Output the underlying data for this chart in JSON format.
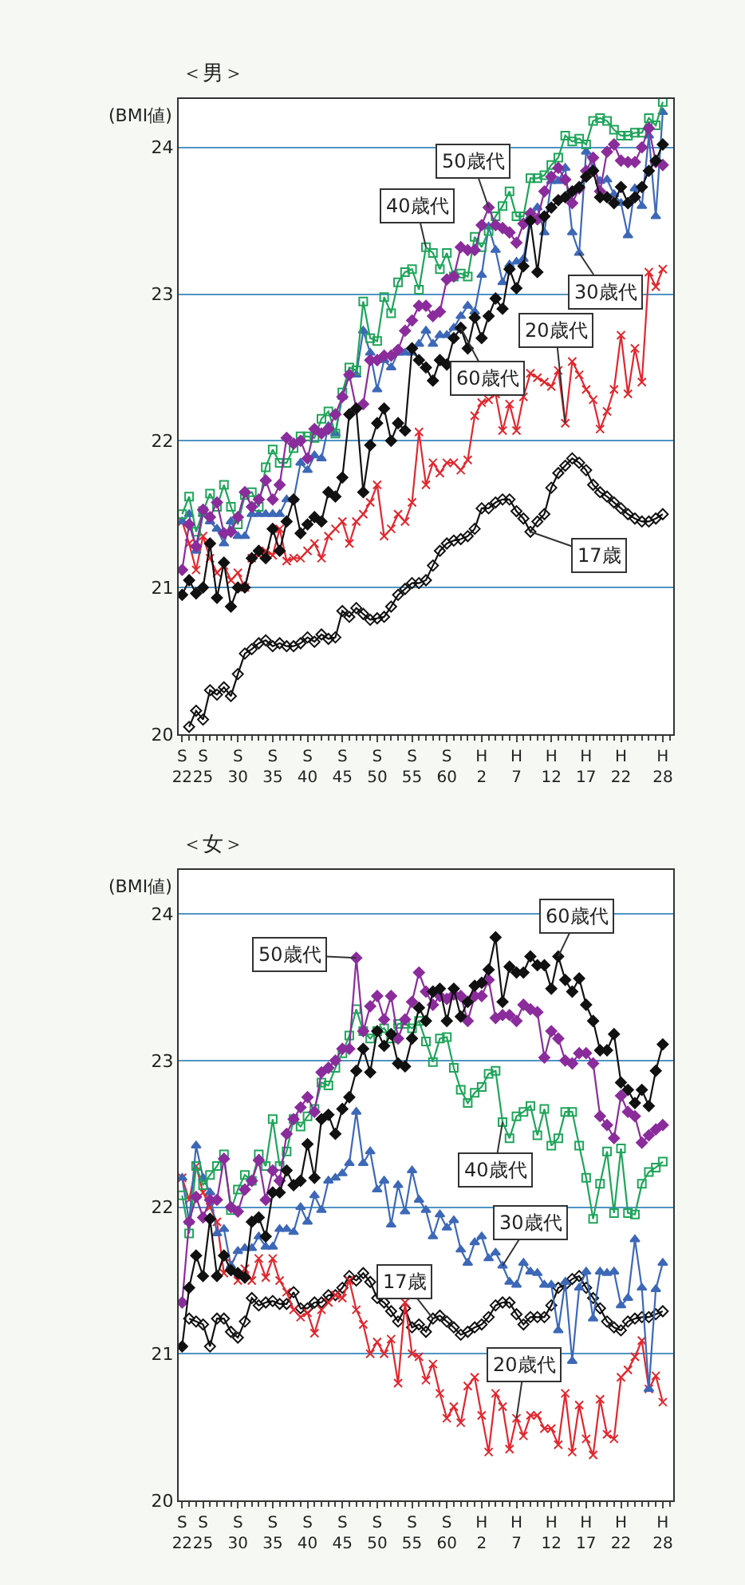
{
  "chart_data": [
    {
      "type": "line",
      "title": "＜男＞",
      "ylabel": "(BMI値)",
      "grid": "y",
      "line_style": "solid",
      "categories": [
        "S\n22",
        null,
        null,
        "S\n25",
        null,
        null,
        null,
        null,
        "S\n30",
        null,
        null,
        null,
        null,
        "S\n35",
        null,
        null,
        null,
        null,
        "S\n40",
        null,
        null,
        null,
        null,
        "S\n45",
        null,
        null,
        null,
        null,
        "S\n50",
        null,
        null,
        null,
        null,
        "S\n55",
        null,
        null,
        null,
        null,
        "S\n60",
        null,
        null,
        null,
        null,
        "H\n2",
        null,
        null,
        null,
        null,
        "H\n7",
        null,
        null,
        null,
        null,
        "H\n12",
        null,
        null,
        null,
        null,
        "H\n17",
        null,
        null,
        null,
        null,
        "H\n22",
        null,
        null,
        null,
        null,
        null,
        "H\n28"
      ],
      "ylim": [
        20,
        24.33
      ],
      "yticks": [
        20,
        21,
        22,
        23,
        24
      ],
      "series": [
        {
          "name": "17歳",
          "color": "#111111",
          "marker": "diamond",
          "values": [
            null,
            20.05,
            20.16,
            20.1,
            20.3,
            20.27,
            20.32,
            20.26,
            20.41,
            20.55,
            20.58,
            20.62,
            20.64,
            20.6,
            20.62,
            20.6,
            20.6,
            20.62,
            20.66,
            20.63,
            20.68,
            20.65,
            20.66,
            20.84,
            20.8,
            20.86,
            20.82,
            20.78,
            20.79,
            20.8,
            20.87,
            20.95,
            20.99,
            21.03,
            21.03,
            21.05,
            21.15,
            21.25,
            21.3,
            21.32,
            21.33,
            21.35,
            21.4,
            21.54,
            21.54,
            21.58,
            21.6,
            21.6,
            21.52,
            21.47,
            21.38,
            21.45,
            21.5,
            21.68,
            21.78,
            21.83,
            21.88,
            21.85,
            21.8,
            21.7,
            21.65,
            21.62,
            21.58,
            21.54,
            21.5,
            21.47,
            21.45,
            21.45,
            21.47,
            21.5
          ]
        },
        {
          "name": "20歳代",
          "color": "#e0282e",
          "marker": "cross",
          "values": [
            21.45,
            21.3,
            21.12,
            21.35,
            21.2,
            21.1,
            21.15,
            21.05,
            21.1,
            21.0,
            21.2,
            21.22,
            21.25,
            21.22,
            21.4,
            21.18,
            21.2,
            21.2,
            21.25,
            21.3,
            21.2,
            21.35,
            21.4,
            21.45,
            21.3,
            21.45,
            21.5,
            21.58,
            21.7,
            21.35,
            21.4,
            21.5,
            21.45,
            21.58,
            22.06,
            21.7,
            21.85,
            21.78,
            21.85,
            21.85,
            21.8,
            21.87,
            22.17,
            22.26,
            22.28,
            22.32,
            22.07,
            22.25,
            22.07,
            22.3,
            22.46,
            22.43,
            22.4,
            22.37,
            22.48,
            22.12,
            22.54,
            22.45,
            22.35,
            22.28,
            22.08,
            22.2,
            22.35,
            22.72,
            22.32,
            22.63,
            22.4,
            23.15,
            23.05,
            23.17
          ]
        },
        {
          "name": "30歳代",
          "color": "#3d68b8",
          "marker": "triangle",
          "values": [
            21.45,
            21.5,
            21.25,
            21.5,
            21.45,
            21.4,
            21.3,
            21.45,
            21.35,
            21.35,
            21.5,
            21.5,
            21.5,
            21.5,
            21.5,
            21.6,
            21.6,
            21.85,
            21.8,
            21.9,
            21.88,
            22.1,
            22.05,
            22.3,
            22.45,
            22.45,
            22.75,
            22.6,
            22.35,
            22.55,
            22.5,
            22.6,
            22.6,
            22.6,
            22.66,
            22.75,
            22.66,
            22.72,
            22.72,
            22.77,
            22.85,
            22.92,
            22.88,
            23.13,
            23.46,
            23.3,
            23.08,
            23.2,
            23.22,
            23.24,
            23.53,
            23.59,
            23.42,
            23.77,
            23.77,
            23.86,
            23.42,
            23.28,
            23.97,
            23.86,
            23.77,
            23.78,
            23.68,
            23.62,
            23.4,
            23.72,
            23.6,
            24.08,
            23.53,
            24.24
          ]
        },
        {
          "name": "40歳代",
          "color": "#1fa55a",
          "marker": "square",
          "values": [
            21.5,
            21.62,
            21.38,
            21.52,
            21.64,
            21.55,
            21.7,
            21.55,
            21.43,
            21.63,
            21.65,
            21.55,
            21.82,
            21.94,
            21.85,
            21.85,
            21.95,
            22.03,
            22.03,
            22.02,
            22.15,
            22.2,
            22.05,
            22.33,
            22.5,
            22.48,
            22.95,
            22.7,
            22.68,
            22.98,
            22.87,
            23.08,
            23.15,
            23.17,
            23.03,
            23.32,
            23.28,
            23.17,
            23.28,
            23.12,
            23.14,
            23.12,
            23.39,
            23.32,
            23.43,
            23.53,
            23.6,
            23.7,
            23.53,
            23.53,
            23.79,
            23.79,
            23.81,
            23.88,
            23.93,
            24.08,
            24.04,
            24.06,
            24.02,
            24.18,
            24.2,
            24.18,
            24.12,
            24.08,
            24.08,
            24.1,
            24.1,
            24.2,
            24.15,
            24.31
          ]
        },
        {
          "name": "50歳代",
          "color": "#8b2c9c",
          "marker": "diamond",
          "values": [
            21.12,
            21.43,
            21.28,
            21.53,
            21.48,
            21.58,
            21.37,
            21.38,
            21.48,
            21.65,
            21.55,
            21.6,
            21.73,
            21.6,
            21.7,
            22.02,
            21.98,
            22.0,
            21.88,
            22.08,
            22.05,
            22.08,
            22.18,
            22.3,
            22.45,
            22.22,
            22.25,
            22.55,
            22.55,
            22.58,
            22.58,
            22.62,
            22.75,
            22.82,
            22.92,
            22.92,
            22.85,
            22.88,
            23.1,
            23.12,
            23.32,
            23.3,
            23.3,
            23.47,
            23.59,
            23.47,
            23.45,
            23.42,
            23.35,
            23.48,
            23.55,
            23.51,
            23.7,
            23.8,
            23.86,
            23.78,
            23.62,
            23.72,
            23.84,
            23.93,
            23.7,
            23.97,
            24.02,
            23.91,
            23.9,
            23.9,
            24.0,
            24.13,
            23.9,
            23.88
          ]
        },
        {
          "name": "60歳代",
          "color": "#111111",
          "marker": "diamond",
          "values": [
            20.95,
            21.05,
            20.96,
            21.0,
            21.3,
            20.93,
            21.17,
            20.87,
            21.0,
            21.0,
            21.2,
            21.25,
            21.2,
            21.4,
            21.25,
            21.45,
            21.6,
            21.37,
            21.43,
            21.48,
            21.45,
            21.65,
            21.62,
            21.75,
            22.18,
            22.22,
            21.65,
            21.97,
            22.12,
            22.22,
            22.0,
            22.12,
            22.07,
            22.63,
            22.55,
            22.5,
            22.41,
            22.55,
            22.52,
            22.7,
            22.77,
            22.63,
            22.84,
            22.7,
            22.85,
            22.97,
            22.9,
            23.17,
            23.04,
            23.19,
            23.5,
            23.15,
            23.53,
            23.59,
            23.64,
            23.66,
            23.7,
            23.73,
            23.8,
            23.84,
            23.66,
            23.66,
            23.62,
            23.73,
            23.62,
            23.66,
            23.73,
            23.84,
            23.91,
            24.02
          ]
        }
      ]
    },
    {
      "type": "line",
      "title": "＜女＞",
      "ylabel": "(BMI値)",
      "grid": "y",
      "line_style": "solid",
      "categories": [
        "S\n22",
        null,
        null,
        "S\n25",
        null,
        null,
        null,
        null,
        "S\n30",
        null,
        null,
        null,
        null,
        "S\n35",
        null,
        null,
        null,
        null,
        "S\n40",
        null,
        null,
        null,
        null,
        "S\n45",
        null,
        null,
        null,
        null,
        "S\n50",
        null,
        null,
        null,
        null,
        "S\n55",
        null,
        null,
        null,
        null,
        "S\n60",
        null,
        null,
        null,
        null,
        "H\n2",
        null,
        null,
        null,
        null,
        "H\n7",
        null,
        null,
        null,
        null,
        "H\n12",
        null,
        null,
        null,
        null,
        "H\n17",
        null,
        null,
        null,
        null,
        "H\n22",
        null,
        null,
        null,
        null,
        null,
        "H\n28"
      ],
      "ylim": [
        20,
        24.3
      ],
      "yticks": [
        20,
        21,
        22,
        23,
        24
      ],
      "series": [
        {
          "name": "17歳",
          "color": "#111111",
          "marker": "diamond",
          "values": [
            null,
            21.24,
            21.22,
            21.2,
            21.05,
            21.24,
            21.24,
            21.15,
            21.11,
            21.22,
            21.38,
            21.33,
            21.35,
            21.36,
            21.34,
            21.34,
            21.42,
            21.31,
            21.31,
            21.35,
            21.35,
            21.4,
            21.4,
            21.45,
            21.53,
            21.5,
            21.55,
            21.49,
            21.38,
            21.35,
            21.29,
            21.22,
            21.31,
            21.18,
            21.2,
            21.15,
            21.24,
            21.26,
            21.22,
            21.18,
            21.13,
            21.15,
            21.18,
            21.2,
            21.25,
            21.33,
            21.35,
            21.35,
            21.27,
            21.2,
            21.25,
            21.25,
            21.25,
            21.33,
            21.45,
            21.47,
            21.51,
            21.53,
            21.45,
            21.38,
            21.31,
            21.22,
            21.18,
            21.16,
            21.22,
            21.24,
            21.25,
            21.25,
            21.27,
            21.29
          ]
        },
        {
          "name": "20歳代",
          "color": "#e0282e",
          "marker": "cross",
          "values": [
            22.2,
            22.05,
            22.28,
            22.1,
            22.0,
            21.9,
            21.55,
            21.62,
            21.5,
            21.58,
            21.5,
            21.65,
            21.52,
            21.65,
            21.5,
            21.42,
            21.3,
            21.25,
            21.28,
            21.14,
            21.3,
            21.35,
            21.4,
            21.38,
            21.5,
            21.3,
            21.2,
            21.0,
            21.08,
            21.0,
            21.1,
            20.8,
            21.35,
            21.0,
            20.98,
            20.82,
            20.93,
            20.73,
            20.56,
            20.64,
            20.53,
            20.78,
            20.84,
            20.58,
            20.33,
            20.73,
            20.64,
            20.35,
            20.56,
            20.44,
            20.58,
            20.58,
            20.49,
            20.49,
            20.38,
            20.73,
            20.33,
            20.65,
            20.42,
            20.31,
            20.69,
            20.45,
            20.42,
            20.84,
            20.89,
            20.98,
            21.09,
            20.76,
            20.85,
            20.67
          ]
        },
        {
          "name": "30歳代",
          "color": "#3d68b8",
          "marker": "triangle",
          "values": [
            22.2,
            21.9,
            22.42,
            22.2,
            22.1,
            21.82,
            21.85,
            21.6,
            21.7,
            21.72,
            21.72,
            21.8,
            21.73,
            21.73,
            21.85,
            21.85,
            21.83,
            22.0,
            21.9,
            22.08,
            21.98,
            22.18,
            22.2,
            22.23,
            22.3,
            22.65,
            22.3,
            22.38,
            22.12,
            22.18,
            21.88,
            22.15,
            21.97,
            22.25,
            22.05,
            21.98,
            21.8,
            21.95,
            21.86,
            21.91,
            21.71,
            21.62,
            21.76,
            21.8,
            21.65,
            21.69,
            21.6,
            21.49,
            21.47,
            21.62,
            21.56,
            21.55,
            21.47,
            21.47,
            21.16,
            21.49,
            20.95,
            21.45,
            21.56,
            21.24,
            21.56,
            21.55,
            21.56,
            21.33,
            21.38,
            21.78,
            21.45,
            20.76,
            21.44,
            21.62
          ]
        },
        {
          "name": "40歳代",
          "color": "#1fa55a",
          "marker": "square",
          "values": [
            22.08,
            21.82,
            22.28,
            22.15,
            22.22,
            22.28,
            22.36,
            21.98,
            22.12,
            22.22,
            22.18,
            22.36,
            22.28,
            22.6,
            22.28,
            22.38,
            22.6,
            22.55,
            22.62,
            22.67,
            22.85,
            22.83,
            22.95,
            23.05,
            23.17,
            23.35,
            23.2,
            23.15,
            23.2,
            23.22,
            23.15,
            23.25,
            23.25,
            23.22,
            23.27,
            23.13,
            22.99,
            23.15,
            23.16,
            22.95,
            22.8,
            22.71,
            22.78,
            22.82,
            22.91,
            22.93,
            22.58,
            22.47,
            22.62,
            22.65,
            22.69,
            22.49,
            22.67,
            22.42,
            22.47,
            22.65,
            22.65,
            22.42,
            22.2,
            21.92,
            22.16,
            22.38,
            21.96,
            22.4,
            21.96,
            21.95,
            22.16,
            22.24,
            22.27,
            22.31
          ]
        },
        {
          "name": "50歳代",
          "color": "#8b2c9c",
          "marker": "diamond",
          "values": [
            21.35,
            21.9,
            22.07,
            21.93,
            22.05,
            22.05,
            22.33,
            22.0,
            21.97,
            22.12,
            22.18,
            22.32,
            22.05,
            22.25,
            22.18,
            22.5,
            22.6,
            22.68,
            22.75,
            22.65,
            22.92,
            22.95,
            23.0,
            23.08,
            23.08,
            23.7,
            23.2,
            23.37,
            23.44,
            23.28,
            23.44,
            23.15,
            23.28,
            23.4,
            23.6,
            23.47,
            23.38,
            23.44,
            23.42,
            23.45,
            23.44,
            23.27,
            23.44,
            23.44,
            23.55,
            23.29,
            23.31,
            23.31,
            23.27,
            23.38,
            23.35,
            23.33,
            23.02,
            23.2,
            23.15,
            23.0,
            22.98,
            23.05,
            23.05,
            22.98,
            22.62,
            22.56,
            22.47,
            22.76,
            22.65,
            22.62,
            22.44,
            22.49,
            22.53,
            22.56
          ]
        },
        {
          "name": "60歳代",
          "color": "#111111",
          "marker": "diamond",
          "values": [
            21.05,
            21.45,
            21.67,
            21.53,
            21.92,
            21.53,
            21.67,
            21.57,
            21.55,
            21.52,
            21.9,
            21.93,
            21.8,
            22.1,
            22.1,
            22.25,
            22.15,
            22.18,
            22.43,
            22.2,
            22.6,
            22.63,
            22.5,
            22.67,
            22.75,
            22.93,
            23.08,
            22.92,
            23.2,
            23.1,
            23.18,
            22.98,
            22.96,
            23.15,
            23.36,
            23.27,
            23.47,
            23.49,
            23.27,
            23.49,
            23.3,
            23.4,
            23.51,
            23.53,
            23.62,
            23.84,
            23.4,
            23.64,
            23.6,
            23.6,
            23.71,
            23.65,
            23.65,
            23.49,
            23.71,
            23.55,
            23.47,
            23.56,
            23.38,
            23.27,
            23.07,
            23.07,
            23.18,
            22.85,
            22.8,
            22.71,
            22.8,
            22.69,
            22.93,
            23.11
          ]
        }
      ]
    }
  ]
}
